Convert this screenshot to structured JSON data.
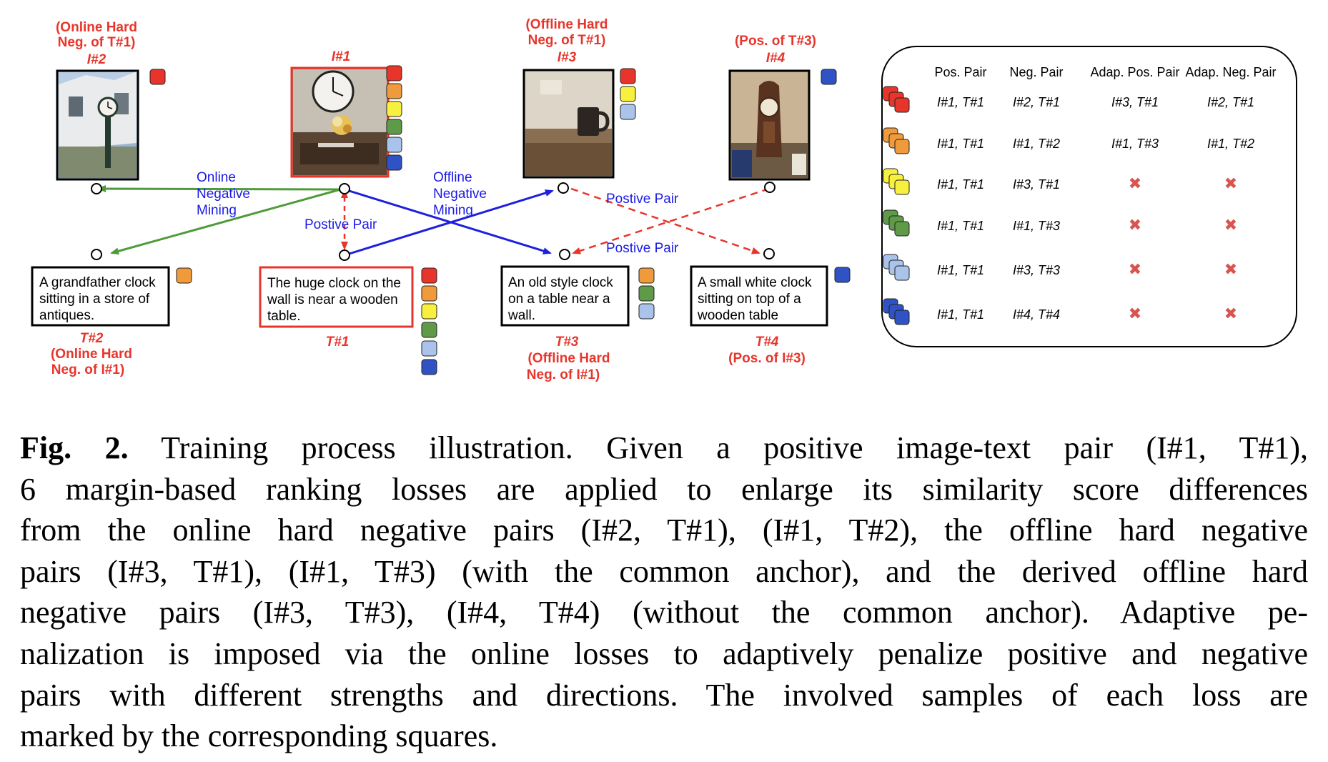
{
  "colors": {
    "red": "#e8352b",
    "orange": "#ef9a3b",
    "yellow": "#f7f03e",
    "green": "#5e9a47",
    "lightblue": "#a9c3ea",
    "darkblue": "#2f53c4",
    "blue_text": "#1a1ae6",
    "green_arrow": "#4f9a3a",
    "blue_arrow": "#1f1fe0"
  },
  "images": [
    {
      "id": "img2",
      "label_lines": [
        "(Online Hard",
        "Neg. of T#1)",
        "I#2"
      ],
      "thumb": "grandfather-clock-street-photo",
      "squares": [
        "red"
      ]
    },
    {
      "id": "img1",
      "label_lines": [
        "I#1"
      ],
      "thumb": "wall-clock-dining-room-photo",
      "squares": [
        "red",
        "orange",
        "yellow",
        "green",
        "lightblue",
        "darkblue"
      ]
    },
    {
      "id": "img3",
      "label_lines": [
        "(Offline Hard",
        "Neg. of T#1)",
        "I#3"
      ],
      "thumb": "mug-on-table-photo",
      "squares": [
        "red",
        "yellow",
        "lightblue"
      ]
    },
    {
      "id": "img4",
      "label_lines": [
        "(Pos. of T#3)",
        "I#4"
      ],
      "thumb": "antique-mantel-clock-photo",
      "squares": [
        "darkblue"
      ]
    }
  ],
  "texts": [
    {
      "id": "t2",
      "lines": [
        "A grandfather clock",
        "sitting in a store of",
        "antiques."
      ],
      "label_lines": [
        "T#2",
        "(Online Hard",
        "Neg. of I#1)"
      ],
      "squares": [
        "orange"
      ]
    },
    {
      "id": "t1",
      "lines": [
        "The huge clock on the",
        "wall is near a wooden",
        "table."
      ],
      "label_lines": [
        "T#1"
      ],
      "squares": [
        "red",
        "orange",
        "yellow",
        "green",
        "lightblue",
        "darkblue"
      ]
    },
    {
      "id": "t3",
      "lines": [
        "An old style clock",
        "on a table near a",
        "wall."
      ],
      "label_lines": [
        "T#3",
        "(Offline Hard",
        "Neg. of I#1)"
      ],
      "squares": [
        "orange",
        "green",
        "lightblue"
      ]
    },
    {
      "id": "t4",
      "lines": [
        "A small white clock",
        "sitting on top of a",
        "wooden table"
      ],
      "label_lines": [
        "T#4",
        "(Pos. of I#3)"
      ],
      "squares": [
        "darkblue"
      ]
    }
  ],
  "arrow_labels": {
    "online": [
      "Online",
      "Negative",
      "Mining"
    ],
    "offline": [
      "Offline",
      "Negative",
      "Mining"
    ],
    "positive_center": "Postive Pair",
    "positive_right_top": "Postive Pair",
    "positive_right_bottom": "Postive Pair"
  },
  "table": {
    "headers": [
      "Pos. Pair",
      "Neg. Pair",
      "Adap. Pos. Pair",
      "Adap. Neg. Pair"
    ],
    "rows": [
      {
        "color": "red",
        "cells": [
          "I#1, T#1",
          "I#2, T#1",
          "I#3, T#1",
          "I#2, T#1"
        ]
      },
      {
        "color": "orange",
        "cells": [
          "I#1, T#1",
          "I#1, T#2",
          "I#1, T#3",
          "I#1, T#2"
        ]
      },
      {
        "color": "yellow",
        "cells": [
          "I#1, T#1",
          "I#3, T#1",
          "✖",
          "✖"
        ]
      },
      {
        "color": "green",
        "cells": [
          "I#1, T#1",
          "I#1, T#3",
          "✖",
          "✖"
        ]
      },
      {
        "color": "lightblue",
        "cells": [
          "I#1, T#1",
          "I#3, T#3",
          "✖",
          "✖"
        ]
      },
      {
        "color": "darkblue",
        "cells": [
          "I#1, T#1",
          "I#4, T#4",
          "✖",
          "✖"
        ]
      }
    ]
  },
  "caption": {
    "figno": "Fig. 2.",
    "lines": [
      " Training process illustration. Given a positive image-text pair (I#1, T#1),",
      "6 margin-based ranking losses are applied to enlarge its similarity score differences",
      "from the online hard negative pairs (I#2, T#1), (I#1, T#2), the offline hard negative",
      "pairs (I#3, T#1), (I#1, T#3) (with the common anchor), and the derived offline hard",
      "negative pairs (I#3, T#3), (I#4, T#4) (without the common anchor). Adaptive pe-",
      "nalization is imposed via the online losses to adaptively penalize positive and negative",
      "pairs with different strengths and directions. The involved samples of each loss are",
      "marked by the corresponding squares."
    ]
  }
}
